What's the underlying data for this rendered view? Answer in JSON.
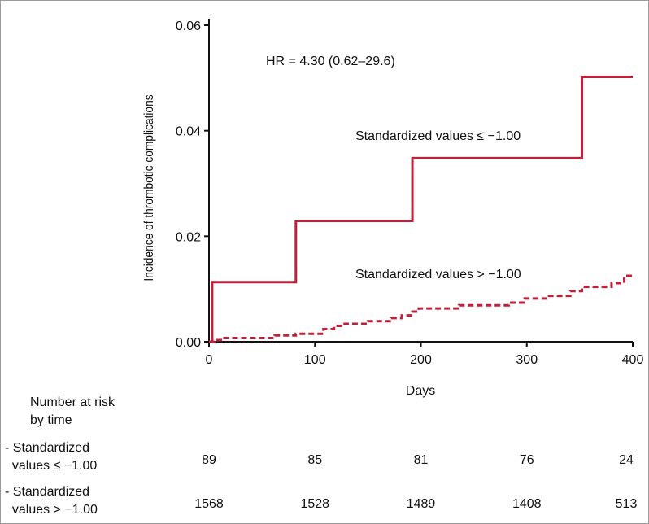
{
  "colors": {
    "series": "#c0203a",
    "axis": "#111111"
  },
  "chart_data": {
    "type": "line",
    "title": "",
    "xlabel": "Days",
    "ylabel": "Incidence of thrombotic complications",
    "xlim": [
      0,
      400
    ],
    "ylim": [
      0,
      0.06
    ],
    "xticks": [
      0,
      100,
      200,
      300,
      400
    ],
    "yticks": [
      "0.00",
      "0.02",
      "0.04",
      "0.06"
    ],
    "annotation": "HR = 4.30 (0.62–29.6)",
    "series": [
      {
        "name": "Standardized values ≤ −1.00",
        "style": "solid",
        "steps": [
          [
            0,
            0
          ],
          [
            3,
            0.0113
          ],
          [
            82,
            0.0229
          ],
          [
            192,
            0.0348
          ],
          [
            352,
            0.0502
          ],
          [
            400,
            0.0502
          ]
        ]
      },
      {
        "name": "Standardized values > −1.00",
        "style": "dashed",
        "steps": [
          [
            0,
            0
          ],
          [
            5,
            0.0003
          ],
          [
            13,
            0.0007
          ],
          [
            62,
            0.0012
          ],
          [
            82,
            0.0015
          ],
          [
            108,
            0.0024
          ],
          [
            118,
            0.003
          ],
          [
            128,
            0.0034
          ],
          [
            150,
            0.0039
          ],
          [
            172,
            0.0045
          ],
          [
            182,
            0.005
          ],
          [
            192,
            0.0057
          ],
          [
            198,
            0.0063
          ],
          [
            236,
            0.0069
          ],
          [
            283,
            0.0074
          ],
          [
            298,
            0.0082
          ],
          [
            321,
            0.0087
          ],
          [
            341,
            0.0096
          ],
          [
            352,
            0.0104
          ],
          [
            380,
            0.0111
          ],
          [
            392,
            0.0125
          ],
          [
            400,
            0.0125
          ]
        ]
      }
    ]
  },
  "risk_table": {
    "header": "Number at risk\nby time",
    "rows": [
      {
        "label": "- Standardized\n  values ≤ −1.00",
        "values": [
          "89",
          "85",
          "81",
          "76",
          "24"
        ]
      },
      {
        "label": "- Standardized\n  values > −1.00",
        "values": [
          "1568",
          "1528",
          "1489",
          "1408",
          "513"
        ]
      }
    ]
  }
}
